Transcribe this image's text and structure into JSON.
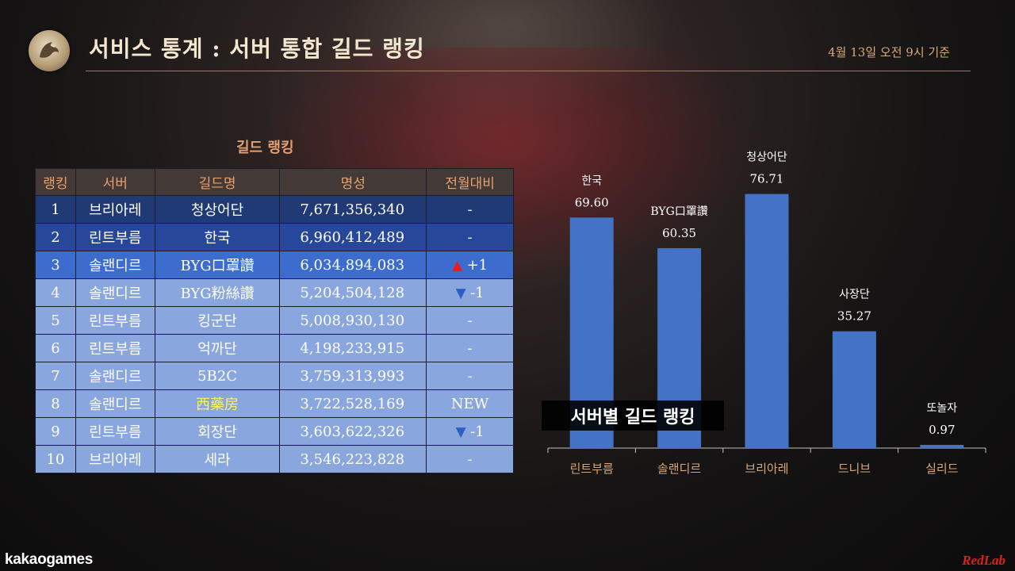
{
  "header": {
    "title": "서비스 통계 : 서버 통합 길드 랭킹",
    "date": "4월 13일 오전 9시 기준"
  },
  "table": {
    "title": "길드 랭킹",
    "columns": [
      "랭킹",
      "서버",
      "길드명",
      "명성",
      "전월대비"
    ],
    "rows": [
      {
        "rank": "1",
        "server": "브리아레",
        "guild": "청상어단",
        "fame": "7,671,356,340",
        "change": "-",
        "trend": ""
      },
      {
        "rank": "2",
        "server": "린트부름",
        "guild": "한국",
        "fame": "6,960,412,489",
        "change": "-",
        "trend": ""
      },
      {
        "rank": "3",
        "server": "솔랜디르",
        "guild": "BYG口罩讚",
        "fame": "6,034,894,083",
        "change": "+1",
        "trend": "up"
      },
      {
        "rank": "4",
        "server": "솔랜디르",
        "guild": "BYG粉絲讚",
        "fame": "5,204,504,128",
        "change": "-1",
        "trend": "down"
      },
      {
        "rank": "5",
        "server": "린트부름",
        "guild": "킹군단",
        "fame": "5,008,930,130",
        "change": "-",
        "trend": ""
      },
      {
        "rank": "6",
        "server": "린트부름",
        "guild": "억까단",
        "fame": "4,198,233,915",
        "change": "-",
        "trend": ""
      },
      {
        "rank": "7",
        "server": "솔랜디르",
        "guild": "5B2C",
        "fame": "3,759,313,993",
        "change": "-",
        "trend": ""
      },
      {
        "rank": "8",
        "server": "솔랜디르",
        "guild": "西藥房",
        "fame": "3,722,528,169",
        "change": "NEW",
        "trend": "",
        "highlight": true
      },
      {
        "rank": "9",
        "server": "린트부름",
        "guild": "회장단",
        "fame": "3,603,622,326",
        "change": "-1",
        "trend": "down"
      },
      {
        "rank": "10",
        "server": "브리아레",
        "guild": "세라",
        "fame": "3,546,223,828",
        "change": "-",
        "trend": ""
      }
    ]
  },
  "chart_data": {
    "type": "bar",
    "title": "서버별 길드 랭킹",
    "categories": [
      "린트부름",
      "솔랜디르",
      "브리아레",
      "드니브",
      "실리드"
    ],
    "series": [
      {
        "values": [
          69.6,
          60.35,
          76.71,
          35.27,
          0.97
        ],
        "labels": [
          "한국",
          "BYG口罩讚",
          "청상어단",
          "사장단",
          "또놀자"
        ]
      }
    ],
    "ylim": [
      0,
      85
    ],
    "grid": false,
    "bar_color": "#4472c4"
  },
  "footer": {
    "brand_left": "kakaogames",
    "brand_right": "RedLab"
  },
  "colors": {
    "row_top1": "#1f3a74",
    "row_top2": "#27479a",
    "row_top3": "#3c6ccd",
    "row_rest": "#8aa6de",
    "header_bg": "#433a37",
    "up": "#e81d1d",
    "down": "#2f5fc5"
  }
}
